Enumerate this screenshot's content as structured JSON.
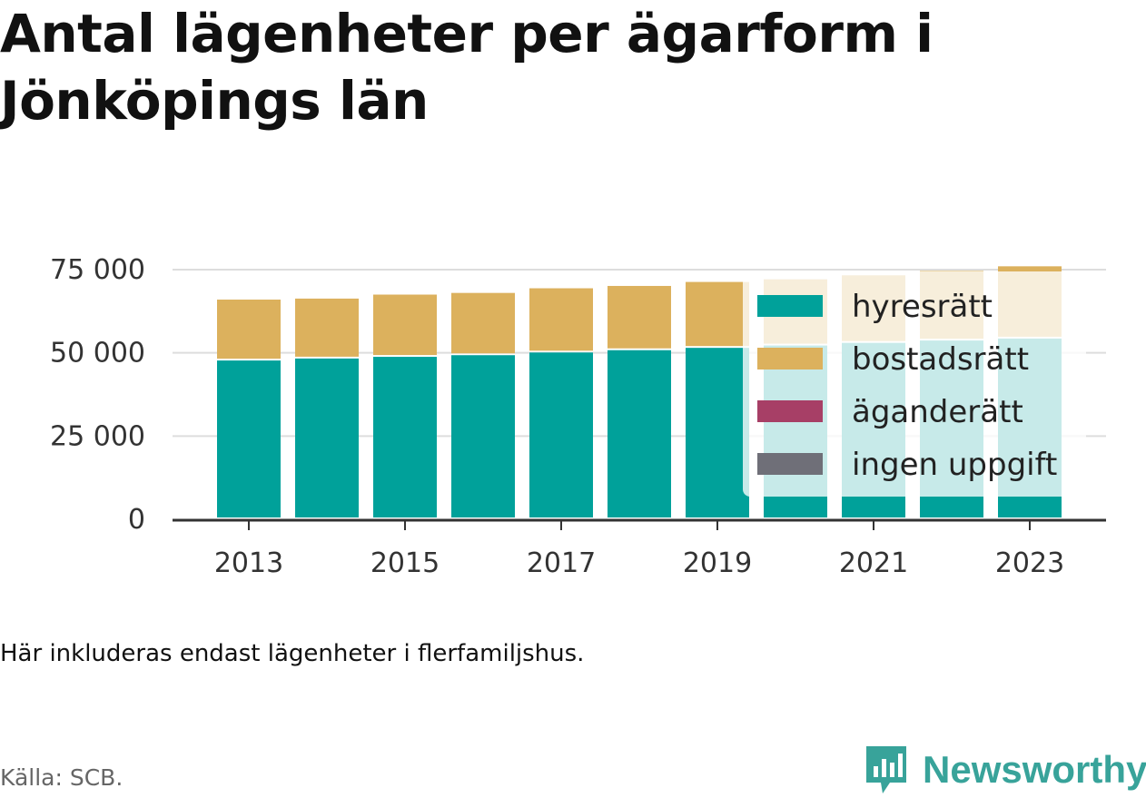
{
  "title": "Antal lägenheter per ägarform i Jönköpings län",
  "note": "Här inkluderas endast lägenheter i flerfamiljshus.",
  "source": "Källa: SCB.",
  "logo": {
    "text": "Newsworthy",
    "icon": "newsworthy-bar-chart-icon",
    "color": "#38a39a"
  },
  "chart_data": {
    "type": "bar",
    "stacked": true,
    "categories": [
      "2013",
      "2014",
      "2015",
      "2016",
      "2017",
      "2018",
      "2019",
      "2020",
      "2021",
      "2022",
      "2023"
    ],
    "x_tick_labels": [
      "2013",
      "2015",
      "2017",
      "2019",
      "2021",
      "2023"
    ],
    "y_ticks": [
      0,
      25000,
      50000,
      75000
    ],
    "y_tick_labels": [
      "0",
      "25 000",
      "50 000",
      "75 000"
    ],
    "ylim": [
      0,
      75000
    ],
    "grid": true,
    "legend_position": "right, overlapping the last bars",
    "series": [
      {
        "name": "hyresrätt",
        "color": "#00a19a",
        "values": [
          47700,
          48300,
          48800,
          49300,
          50100,
          50800,
          51500,
          52200,
          53000,
          53700,
          54300
        ]
      },
      {
        "name": "bostadsrätt",
        "color": "#dcb15d",
        "values": [
          18300,
          18000,
          18700,
          18700,
          19300,
          19300,
          19800,
          19900,
          20300,
          20900,
          21700
        ]
      },
      {
        "name": "äganderätt",
        "color": "#a73f66",
        "values": [
          0,
          0,
          0,
          0,
          0,
          0,
          0,
          0,
          0,
          0,
          0
        ]
      },
      {
        "name": "ingen uppgift",
        "color": "#6f6f78",
        "values": [
          0,
          0,
          0,
          0,
          0,
          0,
          0,
          0,
          0,
          0,
          0
        ]
      }
    ]
  }
}
